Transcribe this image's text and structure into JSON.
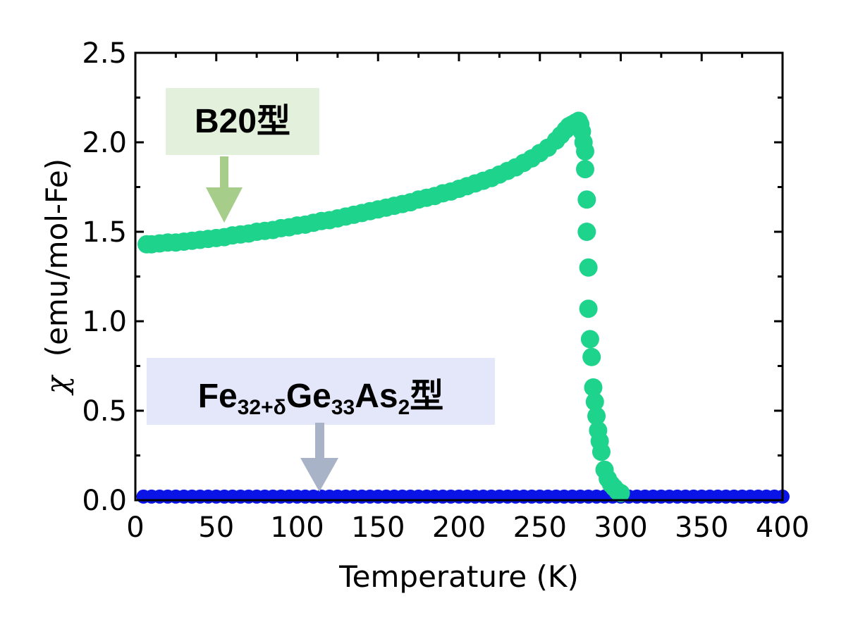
{
  "chart_data": {
    "type": "scatter",
    "xlabel": "Temperature (K)",
    "ylabel_symbol": "χ",
    "ylabel_unit": "(emu/mol-Fe)",
    "xlim": [
      0,
      400
    ],
    "ylim": [
      0,
      2.5
    ],
    "xticks": [
      "0",
      "50",
      "100",
      "150",
      "200",
      "250",
      "300",
      "350",
      "400"
    ],
    "yticks": [
      "0.0",
      "0.5",
      "1.0",
      "1.5",
      "2.0",
      "2.5"
    ],
    "grid": false,
    "series": [
      {
        "name": "B20型",
        "color": "#1ed38c",
        "x": [
          7,
          10,
          15,
          20,
          25,
          30,
          35,
          40,
          45,
          50,
          55,
          60,
          65,
          70,
          75,
          80,
          85,
          90,
          95,
          100,
          105,
          110,
          115,
          120,
          125,
          130,
          135,
          140,
          145,
          150,
          155,
          160,
          165,
          170,
          175,
          180,
          185,
          190,
          195,
          200,
          205,
          210,
          215,
          220,
          225,
          230,
          235,
          240,
          245,
          250,
          255,
          260,
          263,
          266,
          268,
          270,
          272,
          274,
          275,
          276,
          277,
          278,
          278,
          279,
          279,
          280,
          280,
          281,
          282,
          283,
          284,
          285,
          286,
          287,
          288,
          290,
          292,
          294,
          296,
          298,
          300
        ],
        "y": [
          1.43,
          1.43,
          1.435,
          1.44,
          1.44,
          1.445,
          1.45,
          1.455,
          1.46,
          1.465,
          1.47,
          1.48,
          1.485,
          1.49,
          1.5,
          1.505,
          1.51,
          1.52,
          1.525,
          1.535,
          1.54,
          1.55,
          1.56,
          1.565,
          1.575,
          1.585,
          1.595,
          1.605,
          1.615,
          1.625,
          1.635,
          1.645,
          1.655,
          1.665,
          1.68,
          1.69,
          1.7,
          1.715,
          1.725,
          1.74,
          1.755,
          1.77,
          1.785,
          1.8,
          1.82,
          1.84,
          1.86,
          1.885,
          1.91,
          1.94,
          1.97,
          2.01,
          2.04,
          2.07,
          2.09,
          2.1,
          2.11,
          2.12,
          2.1,
          2.06,
          2.0,
          1.95,
          1.85,
          1.68,
          1.5,
          1.3,
          1.07,
          0.9,
          0.8,
          0.63,
          0.55,
          0.47,
          0.39,
          0.33,
          0.27,
          0.17,
          0.12,
          0.09,
          0.07,
          0.05,
          0.04
        ]
      },
      {
        "name": "Fe32+δGe33As2型",
        "color": "#0a14e6",
        "x": [
          5,
          10,
          15,
          20,
          25,
          30,
          35,
          40,
          45,
          50,
          55,
          60,
          65,
          70,
          75,
          80,
          85,
          90,
          95,
          100,
          105,
          110,
          115,
          120,
          125,
          130,
          135,
          140,
          145,
          150,
          155,
          160,
          165,
          170,
          175,
          180,
          185,
          190,
          195,
          200,
          205,
          210,
          215,
          220,
          225,
          230,
          235,
          240,
          245,
          250,
          255,
          260,
          265,
          270,
          275,
          280,
          285,
          290,
          295,
          300,
          305,
          310,
          315,
          320,
          325,
          330,
          335,
          340,
          345,
          350,
          355,
          360,
          365,
          370,
          375,
          380,
          385,
          390,
          395,
          400
        ],
        "y": [
          0.02,
          0.02,
          0.02,
          0.02,
          0.02,
          0.02,
          0.02,
          0.02,
          0.02,
          0.02,
          0.02,
          0.02,
          0.02,
          0.02,
          0.02,
          0.02,
          0.02,
          0.02,
          0.02,
          0.02,
          0.02,
          0.02,
          0.02,
          0.02,
          0.02,
          0.02,
          0.02,
          0.02,
          0.02,
          0.02,
          0.02,
          0.02,
          0.02,
          0.02,
          0.02,
          0.02,
          0.02,
          0.02,
          0.02,
          0.02,
          0.02,
          0.02,
          0.02,
          0.02,
          0.02,
          0.02,
          0.02,
          0.02,
          0.02,
          0.02,
          0.02,
          0.02,
          0.02,
          0.02,
          0.02,
          0.02,
          0.02,
          0.02,
          0.02,
          0.02,
          0.02,
          0.02,
          0.02,
          0.02,
          0.02,
          0.02,
          0.02,
          0.02,
          0.02,
          0.02,
          0.02,
          0.02,
          0.02,
          0.02,
          0.02,
          0.02,
          0.02,
          0.02,
          0.02,
          0.02
        ]
      }
    ],
    "annotations": [
      {
        "text": "B20型",
        "box_color": "#e3f0dc",
        "arrow_color": "#a6cd8a"
      },
      {
        "parts": [
          {
            "text": "Fe",
            "sub": false
          },
          {
            "text": "32+δ",
            "sub": true
          },
          {
            "text": "Ge",
            "sub": false
          },
          {
            "text": "33",
            "sub": true
          },
          {
            "text": "As",
            "sub": false
          },
          {
            "text": "2",
            "sub": true
          },
          {
            "text": "型",
            "sub": false
          }
        ],
        "box_color": "#e4e6fa",
        "arrow_color": "#a9b3c8"
      }
    ]
  }
}
